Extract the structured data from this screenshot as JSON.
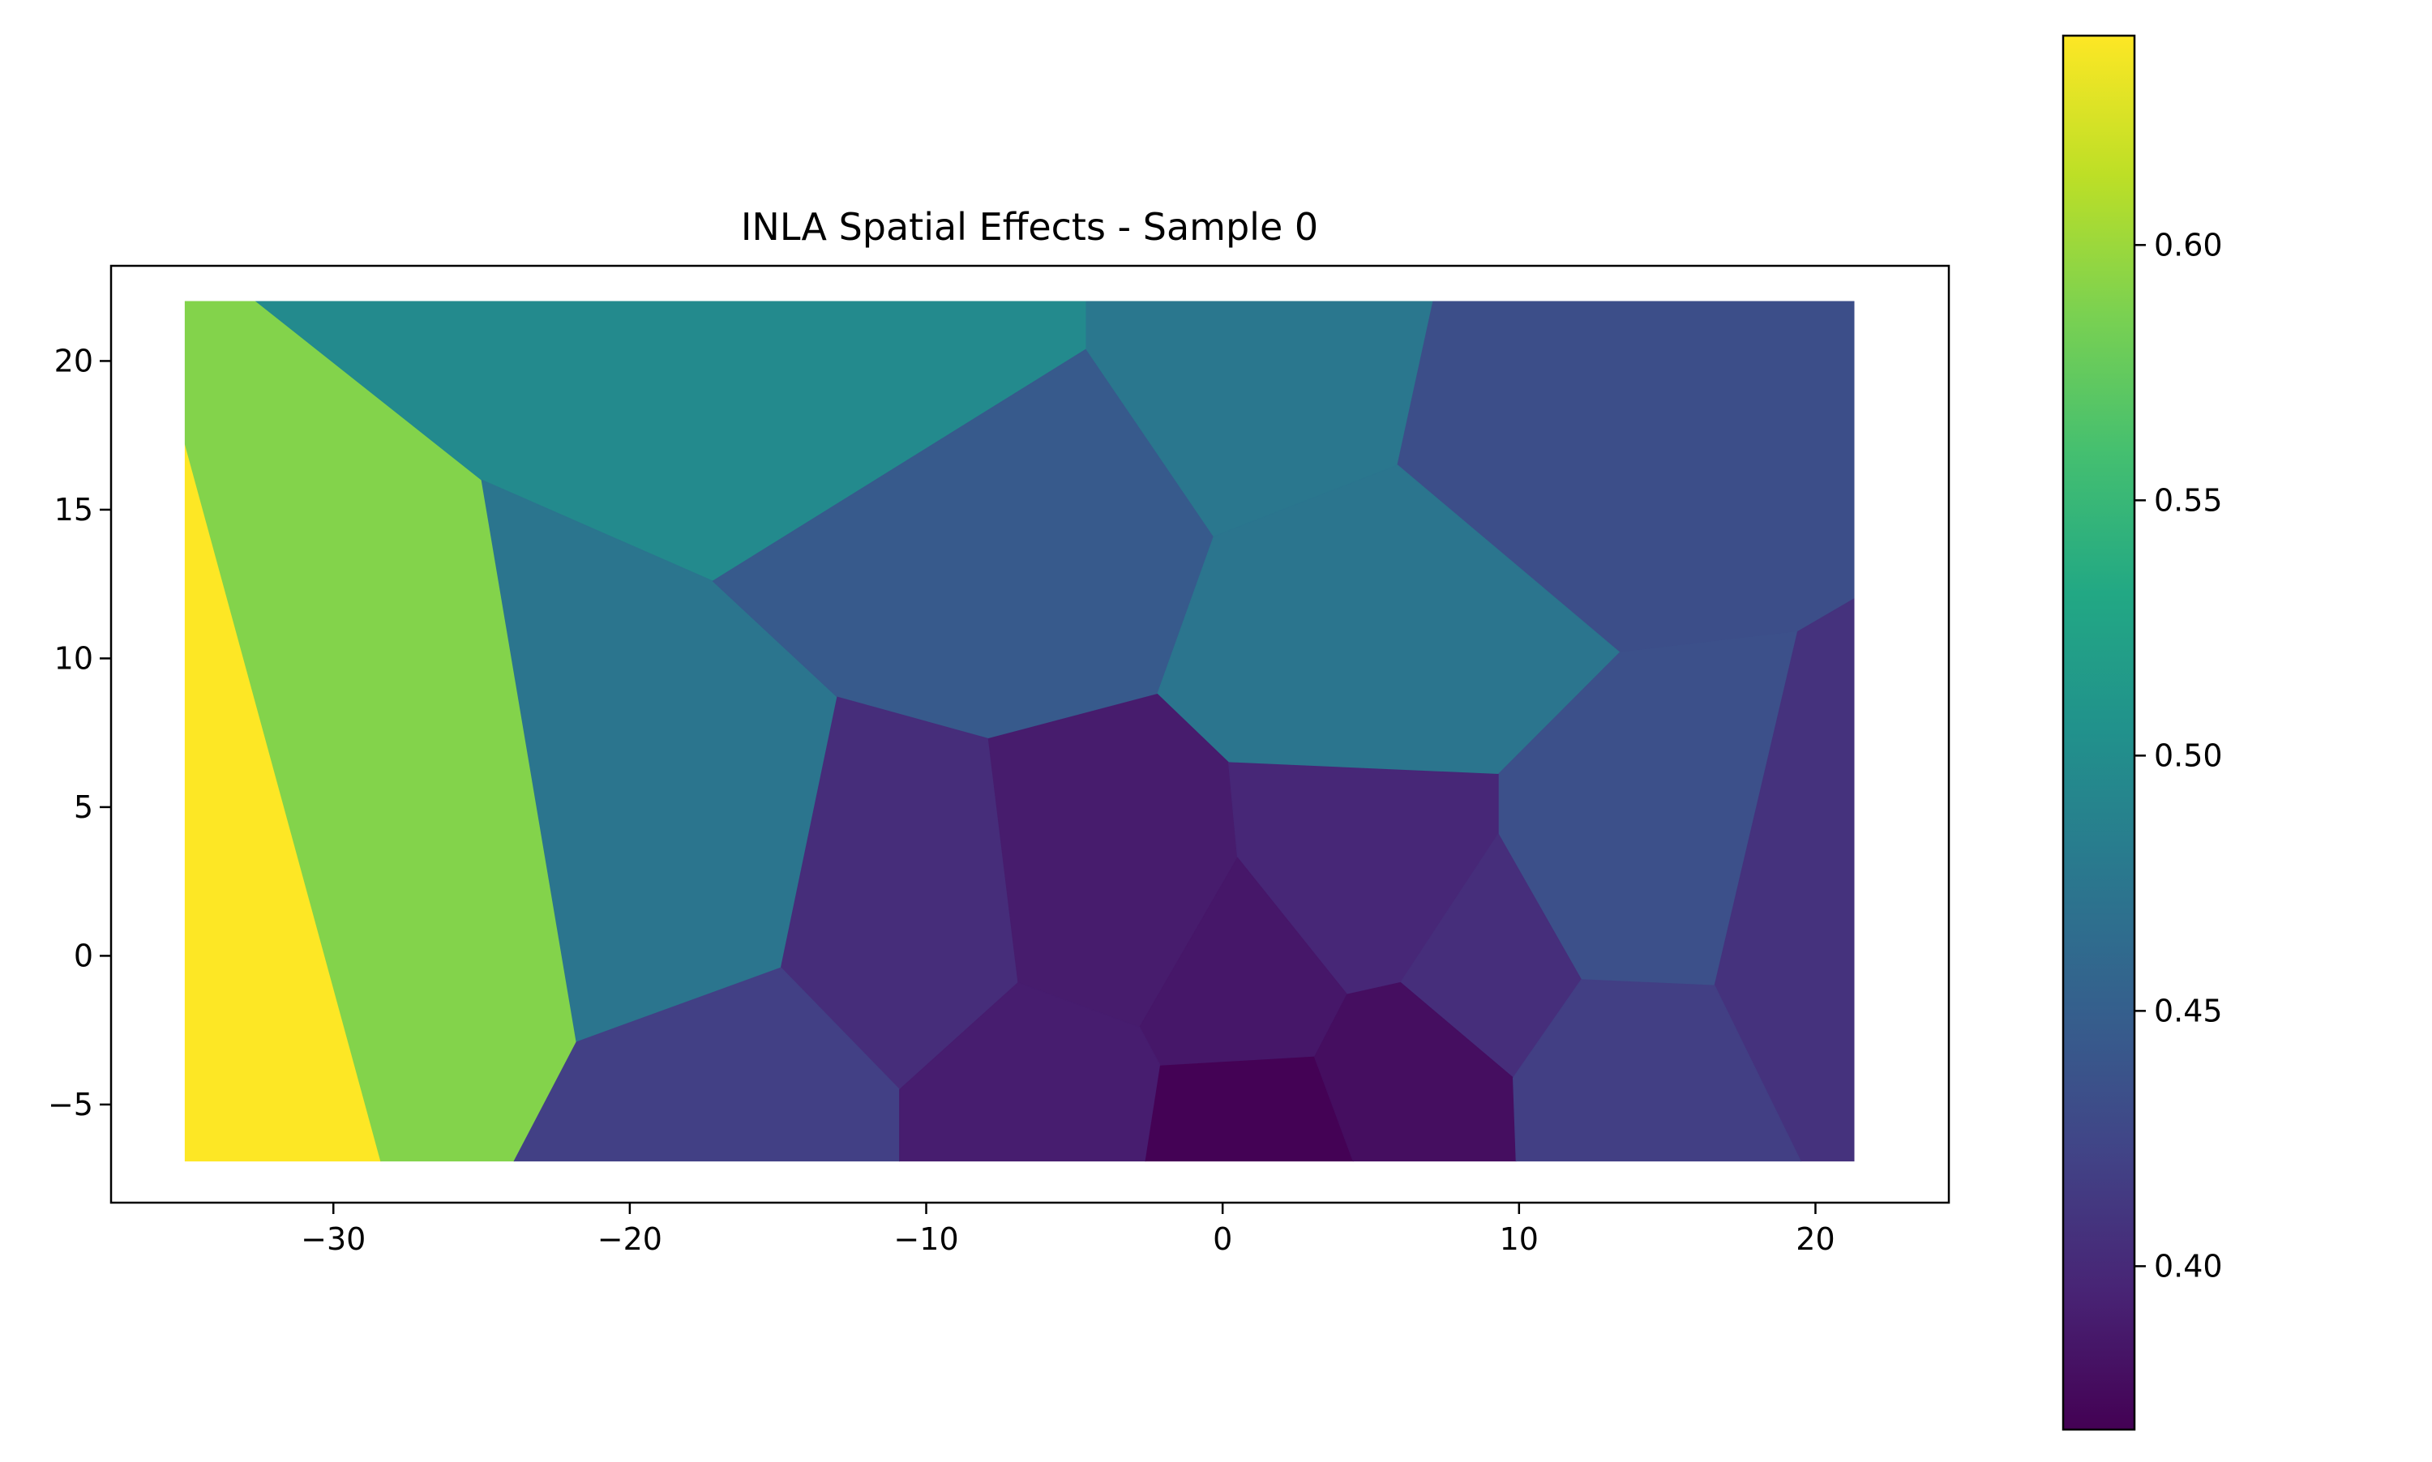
{
  "chart_data": {
    "type": "heatmap",
    "subtype": "voronoi-map",
    "title": "INLA Spatial Effects - Sample 0",
    "xlabel": "",
    "ylabel": "",
    "xlim": [
      -37.5,
      24.5
    ],
    "ylim": [
      -8.3,
      23.2
    ],
    "x_ticks": [
      -30,
      -20,
      -10,
      0,
      10,
      20
    ],
    "x_tick_labels": [
      "−30",
      "−20",
      "−10",
      "0",
      "10",
      "20"
    ],
    "y_ticks": [
      -5,
      0,
      5,
      10,
      15,
      20
    ],
    "y_tick_labels": [
      "−5",
      "0",
      "5",
      "10",
      "15",
      "20"
    ],
    "colormap": "viridis",
    "colorbar": {
      "vmin": 0.368,
      "vmax": 0.641,
      "ticks": [
        0.4,
        0.45,
        0.5,
        0.55,
        0.6
      ],
      "tick_labels": [
        "0.40",
        "0.45",
        "0.50",
        "0.55",
        "0.60"
      ]
    },
    "cells": [
      {
        "value": 0.641,
        "polygon": [
          [
            -35.0,
            17.2
          ],
          [
            -28.4,
            -6.9
          ],
          [
            -35.0,
            -6.9
          ]
        ]
      },
      {
        "value": 0.59,
        "polygon": [
          [
            -35.0,
            22.0
          ],
          [
            -32.6,
            22.0
          ],
          [
            -25.0,
            16.0
          ],
          [
            -21.8,
            -2.9
          ],
          [
            -23.9,
            -6.9
          ],
          [
            -28.4,
            -6.9
          ],
          [
            -35.0,
            17.2
          ]
        ]
      },
      {
        "value": 0.497,
        "polygon": [
          [
            -32.6,
            22.0
          ],
          [
            -4.6,
            22.0
          ],
          [
            -4.6,
            20.4
          ],
          [
            -17.2,
            12.6
          ],
          [
            -25.0,
            16.0
          ]
        ]
      },
      {
        "value": 0.474,
        "polygon": [
          [
            -25.0,
            16.0
          ],
          [
            -17.2,
            12.6
          ],
          [
            -13.0,
            8.7
          ],
          [
            -14.9,
            -0.4
          ],
          [
            -21.8,
            -2.9
          ]
        ]
      },
      {
        "value": 0.445,
        "polygon": [
          [
            -17.2,
            12.6
          ],
          [
            -4.6,
            20.4
          ],
          [
            -0.3,
            14.1
          ],
          [
            -2.2,
            8.8
          ],
          [
            -7.9,
            7.3
          ],
          [
            -13.0,
            8.7
          ]
        ]
      },
      {
        "value": 0.476,
        "polygon": [
          [
            -4.6,
            22.0
          ],
          [
            7.1,
            22.0
          ],
          [
            5.9,
            16.5
          ],
          [
            -0.3,
            14.1
          ],
          [
            -4.6,
            20.4
          ]
        ]
      },
      {
        "value": 0.433,
        "polygon": [
          [
            7.1,
            22.0
          ],
          [
            21.3,
            22.0
          ],
          [
            21.3,
            12.0
          ],
          [
            19.4,
            10.9
          ],
          [
            13.4,
            10.2
          ],
          [
            5.9,
            16.5
          ]
        ]
      },
      {
        "value": 0.474,
        "polygon": [
          [
            5.9,
            16.5
          ],
          [
            13.4,
            10.2
          ],
          [
            9.3,
            6.1
          ],
          [
            0.2,
            6.5
          ],
          [
            -2.2,
            8.8
          ],
          [
            -0.3,
            14.1
          ]
        ]
      },
      {
        "value": 0.435,
        "polygon": [
          [
            13.4,
            10.2
          ],
          [
            19.4,
            10.9
          ],
          [
            16.6,
            -1.0
          ],
          [
            12.1,
            -0.8
          ],
          [
            9.3,
            4.1
          ],
          [
            9.3,
            6.1
          ]
        ]
      },
      {
        "value": 0.407,
        "polygon": [
          [
            21.3,
            12.0
          ],
          [
            21.3,
            -6.9
          ],
          [
            19.5,
            -6.9
          ],
          [
            16.6,
            -1.0
          ],
          [
            19.4,
            10.9
          ]
        ]
      },
      {
        "value": 0.403,
        "polygon": [
          [
            -13.0,
            8.7
          ],
          [
            -7.9,
            7.3
          ],
          [
            -6.9,
            -0.9
          ],
          [
            -10.9,
            -4.5
          ],
          [
            -14.9,
            -0.4
          ]
        ]
      },
      {
        "value": 0.389,
        "polygon": [
          [
            -7.9,
            7.3
          ],
          [
            -2.2,
            8.8
          ],
          [
            0.2,
            6.5
          ],
          [
            0.5,
            3.3
          ],
          [
            -2.8,
            -2.4
          ],
          [
            -6.9,
            -0.9
          ]
        ]
      },
      {
        "value": 0.398,
        "polygon": [
          [
            0.2,
            6.5
          ],
          [
            9.3,
            6.1
          ],
          [
            9.3,
            4.1
          ],
          [
            6.0,
            -0.9
          ],
          [
            4.2,
            -1.3
          ],
          [
            0.5,
            3.3
          ]
        ]
      },
      {
        "value": 0.385,
        "polygon": [
          [
            0.5,
            3.3
          ],
          [
            4.2,
            -1.3
          ],
          [
            3.1,
            -3.4
          ],
          [
            -2.1,
            -3.7
          ],
          [
            -2.8,
            -2.4
          ]
        ]
      },
      {
        "value": 0.404,
        "polygon": [
          [
            9.3,
            4.1
          ],
          [
            12.1,
            -0.8
          ],
          [
            9.8,
            -4.1
          ],
          [
            6.0,
            -0.9
          ]
        ]
      },
      {
        "value": 0.419,
        "polygon": [
          [
            -21.8,
            -2.9
          ],
          [
            -14.9,
            -0.4
          ],
          [
            -10.9,
            -4.5
          ],
          [
            -10.9,
            -6.9
          ],
          [
            -23.9,
            -6.9
          ]
        ]
      },
      {
        "value": 0.39,
        "polygon": [
          [
            -10.9,
            -4.5
          ],
          [
            -6.9,
            -0.9
          ],
          [
            -2.8,
            -2.4
          ],
          [
            -2.1,
            -3.7
          ],
          [
            -2.6,
            -6.9
          ],
          [
            -10.9,
            -6.9
          ]
        ]
      },
      {
        "value": 0.369,
        "polygon": [
          [
            -2.1,
            -3.7
          ],
          [
            3.1,
            -3.4
          ],
          [
            4.4,
            -6.9
          ],
          [
            -2.6,
            -6.9
          ]
        ]
      },
      {
        "value": 0.378,
        "polygon": [
          [
            3.1,
            -3.4
          ],
          [
            4.2,
            -1.3
          ],
          [
            6.0,
            -0.9
          ],
          [
            9.8,
            -4.1
          ],
          [
            9.9,
            -6.9
          ],
          [
            4.4,
            -6.9
          ]
        ]
      },
      {
        "value": 0.418,
        "polygon": [
          [
            12.1,
            -0.8
          ],
          [
            16.6,
            -1.0
          ],
          [
            19.5,
            -6.9
          ],
          [
            9.9,
            -6.9
          ],
          [
            9.8,
            -4.1
          ]
        ]
      }
    ]
  }
}
